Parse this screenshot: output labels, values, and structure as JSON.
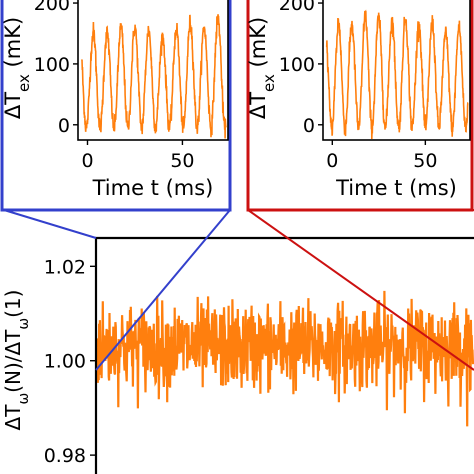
{
  "chart_data": [
    {
      "type": "line",
      "panel": "inset-left",
      "xlabel": "Time t (ms)",
      "ylabel": "ΔT_ex (mK)",
      "xlim": [
        -5,
        74
      ],
      "ylim": [
        -25,
        205
      ],
      "xticks": [
        "0",
        "50"
      ],
      "xtick_values": [
        0,
        50
      ],
      "yticks": [
        "0",
        "100",
        "200"
      ],
      "ytick_values": [
        0,
        100,
        200
      ],
      "series": [
        {
          "color": "#ff7f0e",
          "oscillation": {
            "period_ms": 7.3,
            "phase_ms": 1.2,
            "max": 160,
            "min": -5
          },
          "x": [
            0,
            6,
            13,
            20,
            27,
            34,
            41,
            48,
            55,
            62,
            69
          ],
          "y": [
            150,
            155,
            150,
            160,
            160,
            155,
            145,
            158,
            168,
            160,
            175
          ]
        }
      ],
      "frame_color": "#3340cc"
    },
    {
      "type": "line",
      "panel": "inset-right",
      "xlabel": "Time t (ms)",
      "ylabel": "ΔT_ex (mK)",
      "xlim": [
        -5,
        74
      ],
      "ylim": [
        -25,
        205
      ],
      "xticks": [
        "0",
        "50"
      ],
      "xtick_values": [
        0,
        50
      ],
      "yticks": [
        "0",
        "100",
        "200"
      ],
      "ytick_values": [
        0,
        100,
        200
      ],
      "series": [
        {
          "color": "#ff7f0e",
          "oscillation": {
            "period_ms": 7.2,
            "phase_ms": 1.5,
            "max": 160,
            "min": -5
          },
          "x": [
            0,
            6,
            13,
            20,
            27,
            34,
            41,
            48,
            55,
            62,
            69
          ],
          "y": [
            160,
            170,
            165,
            180,
            175,
            170,
            175,
            165,
            168,
            150,
            160
          ]
        }
      ],
      "frame_color": "#cc1111"
    },
    {
      "type": "line",
      "panel": "main",
      "xlabel": "",
      "ylabel": "ΔT_ω(N)/ΔT_ω(1)",
      "ylim": [
        0.976,
        1.026
      ],
      "yticks": [
        "0.98",
        "1.00",
        "1.02"
      ],
      "ytick_values": [
        0.98,
        1.0,
        1.02
      ],
      "series": [
        {
          "color": "#ff7f0e",
          "mean": 1.003,
          "noise_sigma": 0.006,
          "min_dip": 0.985,
          "max_peak": 1.021
        }
      ],
      "zoom_left_color": "#3340cc",
      "zoom_right_color": "#cc1111"
    }
  ]
}
